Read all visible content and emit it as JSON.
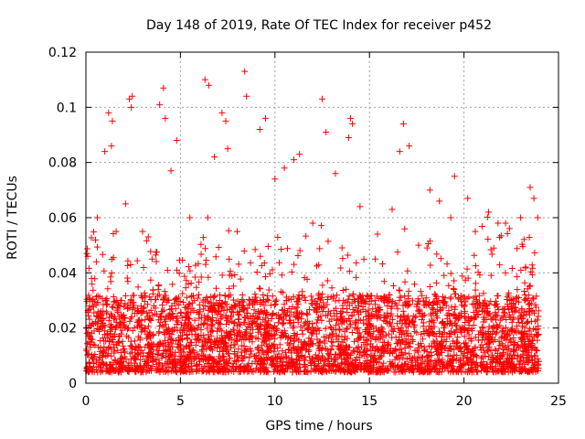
{
  "chart_data": {
    "type": "scatter",
    "title": "Day 148 of 2019, Rate Of TEC Index for receiver p452",
    "xlabel": "GPS time / hours",
    "ylabel": "ROTI / TECUs",
    "xlim": [
      0,
      25
    ],
    "ylim": [
      0,
      0.12
    ],
    "x_ticks": [
      0,
      5,
      10,
      15,
      20,
      25
    ],
    "x_tick_labels": [
      "0",
      "5",
      "10",
      "15",
      "20",
      "25"
    ],
    "y_ticks": [
      0,
      0.02,
      0.04,
      0.06,
      0.08,
      0.1,
      0.12
    ],
    "y_tick_labels": [
      "0",
      "0.02",
      "0.04",
      "0.06",
      "0.08",
      "0.1",
      "0.12"
    ],
    "grid": true,
    "marker": "+",
    "series_color": "#ff0000",
    "series": [
      {
        "name": "ROTI",
        "x": [
          0.05,
          0.1,
          0.3,
          0.6,
          1.0,
          1.2,
          1.35,
          1.4,
          1.6,
          2.1,
          2.3,
          2.4,
          2.45,
          3.0,
          3.5,
          3.9,
          4.1,
          4.2,
          4.5,
          4.8,
          5.5,
          6.3,
          6.5,
          6.8,
          7.2,
          7.4,
          7.5,
          8.0,
          8.4,
          8.5,
          9.2,
          9.5,
          10.0,
          10.5,
          11.0,
          11.3,
          12.0,
          12.5,
          12.7,
          13.2,
          13.9,
          14.0,
          14.1,
          14.5,
          15.3,
          16.2,
          16.6,
          16.8,
          17.1,
          17.6,
          18.2,
          18.7,
          19.3,
          19.5,
          20.2,
          20.6,
          21.3,
          21.8,
          22.2,
          23.0,
          23.5,
          23.7,
          23.9,
          0.4,
          2.8,
          5.8,
          8.8,
          11.8,
          14.8,
          17.9,
          20.9,
          22.9
        ],
        "y": [
          0.047,
          0.046,
          0.038,
          0.06,
          0.084,
          0.098,
          0.086,
          0.095,
          0.055,
          0.065,
          0.103,
          0.1,
          0.104,
          0.055,
          0.045,
          0.101,
          0.107,
          0.096,
          0.077,
          0.088,
          0.06,
          0.11,
          0.108,
          0.082,
          0.098,
          0.095,
          0.085,
          0.055,
          0.113,
          0.104,
          0.092,
          0.096,
          0.074,
          0.078,
          0.081,
          0.083,
          0.058,
          0.103,
          0.091,
          0.076,
          0.089,
          0.096,
          0.094,
          0.064,
          0.045,
          0.063,
          0.084,
          0.094,
          0.086,
          0.05,
          0.07,
          0.066,
          0.06,
          0.075,
          0.067,
          0.055,
          0.062,
          0.058,
          0.058,
          0.06,
          0.071,
          0.067,
          0.06,
          0.014,
          0.013,
          0.016,
          0.015,
          0.012,
          0.014,
          0.013,
          0.012,
          0.013
        ]
      }
    ]
  }
}
